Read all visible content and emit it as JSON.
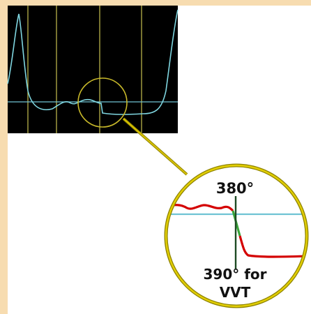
{
  "zoom": {
    "label_top": "380°",
    "label_bottom_line1": "390° for",
    "label_bottom_line2": "VVT"
  },
  "colors": {
    "page_border": "#f7dcb0",
    "panel_background": "#ffffff",
    "scope_background": "#000000",
    "trace": "#7fd6e0",
    "gridline": "#b9b24a",
    "baseline": "#6fc3d3",
    "highlight_circle": "#c8b92a",
    "zoom_ring": "#d8c200",
    "zoom_trace_red": "#d40000",
    "zoom_trace_green": "#3aa53a",
    "zoom_marker": "#1d4a23"
  }
}
